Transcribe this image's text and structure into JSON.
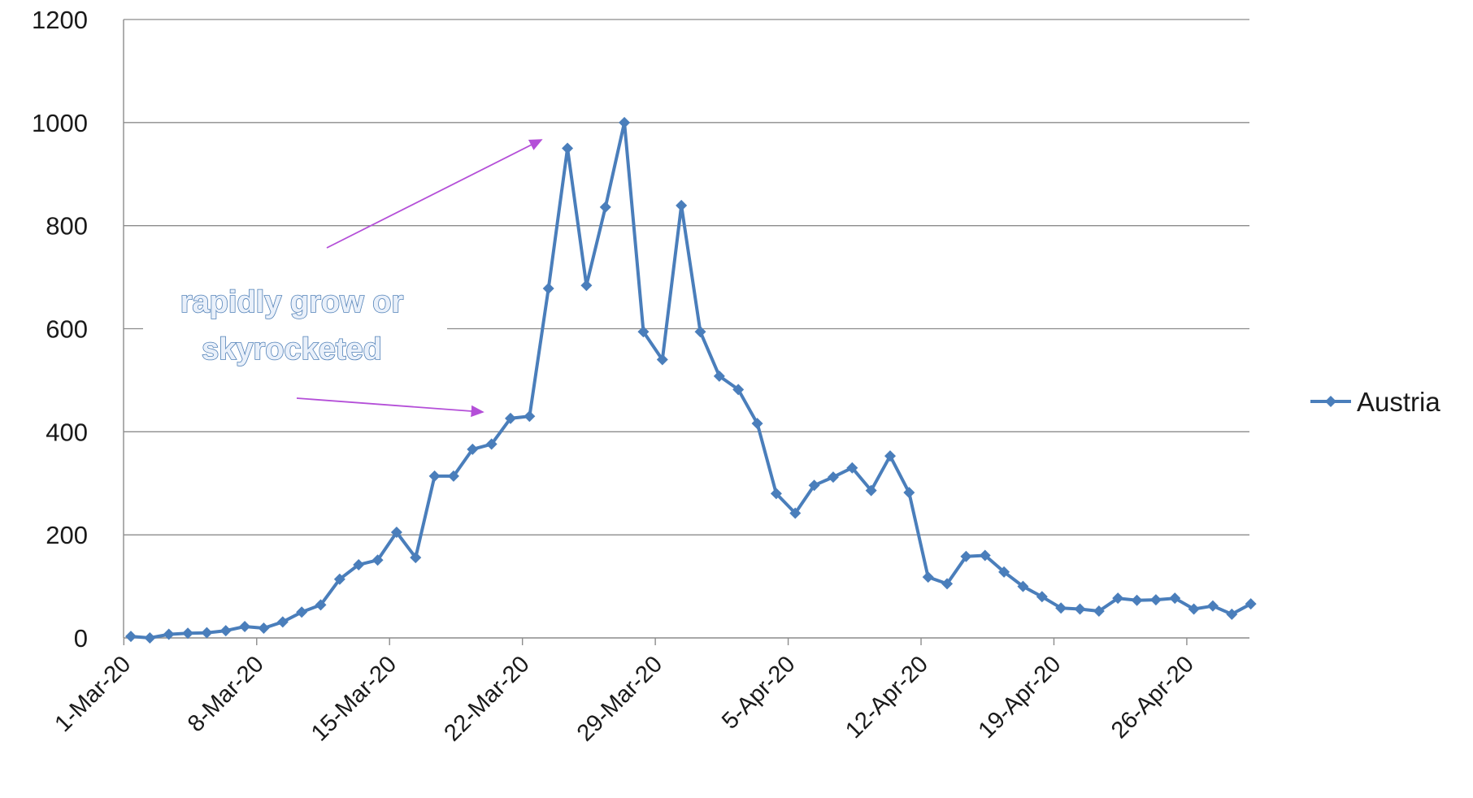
{
  "chart_data": {
    "type": "line",
    "title": "",
    "xlabel": "",
    "ylabel": "",
    "ylim": [
      0,
      1200
    ],
    "yticks": [
      "0",
      "200",
      "400",
      "600",
      "800",
      "1000",
      "1200"
    ],
    "xticks": [
      "1-Mar-20",
      "8-Mar-20",
      "15-Mar-20",
      "22-Mar-20",
      "29-Mar-20",
      "5-Apr-20",
      "12-Apr-20",
      "19-Apr-20",
      "26-Apr-20"
    ],
    "grid": true,
    "legend": "right",
    "x": [
      "1-Mar-20",
      "2-Mar-20",
      "3-Mar-20",
      "4-Mar-20",
      "5-Mar-20",
      "6-Mar-20",
      "7-Mar-20",
      "8-Mar-20",
      "9-Mar-20",
      "10-Mar-20",
      "11-Mar-20",
      "12-Mar-20",
      "13-Mar-20",
      "14-Mar-20",
      "15-Mar-20",
      "16-Mar-20",
      "17-Mar-20",
      "18-Mar-20",
      "19-Mar-20",
      "20-Mar-20",
      "21-Mar-20",
      "22-Mar-20",
      "23-Mar-20",
      "24-Mar-20",
      "25-Mar-20",
      "26-Mar-20",
      "27-Mar-20",
      "28-Mar-20",
      "29-Mar-20",
      "30-Mar-20",
      "31-Mar-20",
      "1-Apr-20",
      "2-Apr-20",
      "3-Apr-20",
      "4-Apr-20",
      "5-Apr-20",
      "6-Apr-20",
      "7-Apr-20",
      "8-Apr-20",
      "9-Apr-20",
      "10-Apr-20",
      "11-Apr-20",
      "12-Apr-20",
      "13-Apr-20",
      "14-Apr-20",
      "15-Apr-20",
      "16-Apr-20",
      "17-Apr-20",
      "18-Apr-20",
      "19-Apr-20",
      "20-Apr-20",
      "21-Apr-20",
      "22-Apr-20",
      "23-Apr-20",
      "24-Apr-20",
      "25-Apr-20",
      "26-Apr-20",
      "27-Apr-20",
      "28-Apr-20",
      "29-Apr-20"
    ],
    "series": [
      {
        "name": "Austria",
        "color": "#4a7ebb",
        "values": [
          3,
          0,
          7,
          9,
          10,
          14,
          22,
          19,
          31,
          50,
          64,
          114,
          142,
          151,
          205,
          156,
          314,
          314,
          366,
          376,
          426,
          430,
          678,
          950,
          684,
          836,
          1000,
          594,
          540,
          839,
          594,
          508,
          482,
          416,
          280,
          242,
          296,
          312,
          330,
          286,
          353,
          282,
          118,
          105,
          158,
          160,
          128,
          100,
          80,
          58,
          56,
          52,
          77,
          73,
          74,
          77,
          56,
          62,
          46,
          66
        ]
      }
    ],
    "annotations": [
      {
        "text": "rapidly grow or\nskyrocketed",
        "color": "#4f7fb6"
      }
    ],
    "arrow_color": "#b44fd8"
  }
}
